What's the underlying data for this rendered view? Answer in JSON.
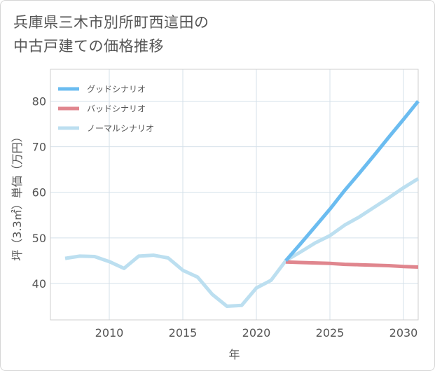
{
  "title_lines": [
    "兵庫県三木市別所町西這田の",
    "中古戸建ての価格推移"
  ],
  "chart_data": {
    "type": "line",
    "title": "兵庫県三木市別所町西這田の中古戸建ての価格推移",
    "xlabel": "年",
    "ylabel": "坪（3.3㎡）単価（万円）",
    "xlim": [
      2006,
      2031
    ],
    "ylim": [
      32,
      87
    ],
    "xticks": [
      2010,
      2015,
      2020,
      2025,
      2030
    ],
    "yticks": [
      40,
      50,
      60,
      70,
      80
    ],
    "grid": true,
    "legend_position": "top-left",
    "series": [
      {
        "name": "グッドシナリオ",
        "color": "#6bbcf0",
        "x": [
          2022,
          2023,
          2024,
          2025,
          2026,
          2027,
          2028,
          2029,
          2030,
          2031
        ],
        "y": [
          45.0,
          48.7,
          52.5,
          56.3,
          60.4,
          64.2,
          68.1,
          72.1,
          76.0,
          80.0
        ]
      },
      {
        "name": "バッドシナリオ",
        "color": "#e0868e",
        "x": [
          2022,
          2023,
          2024,
          2025,
          2026,
          2027,
          2028,
          2029,
          2030,
          2031
        ],
        "y": [
          44.7,
          44.6,
          44.5,
          44.4,
          44.2,
          44.1,
          44.0,
          43.9,
          43.7,
          43.6
        ]
      },
      {
        "name": "ノーマルシナリオ",
        "color": "#bcdff0",
        "x": [
          2007,
          2008,
          2009,
          2010,
          2011,
          2012,
          2013,
          2014,
          2015,
          2016,
          2017,
          2018,
          2019,
          2020,
          2021,
          2022,
          2023,
          2024,
          2025,
          2026,
          2027,
          2028,
          2029,
          2030,
          2031
        ],
        "y": [
          45.5,
          46.0,
          45.9,
          44.8,
          43.3,
          46.0,
          46.2,
          45.6,
          42.9,
          41.4,
          37.6,
          35.0,
          35.2,
          39.0,
          40.7,
          45.0,
          46.9,
          48.9,
          50.5,
          52.8,
          54.6,
          56.7,
          58.8,
          61.0,
          63.0
        ]
      }
    ]
  }
}
